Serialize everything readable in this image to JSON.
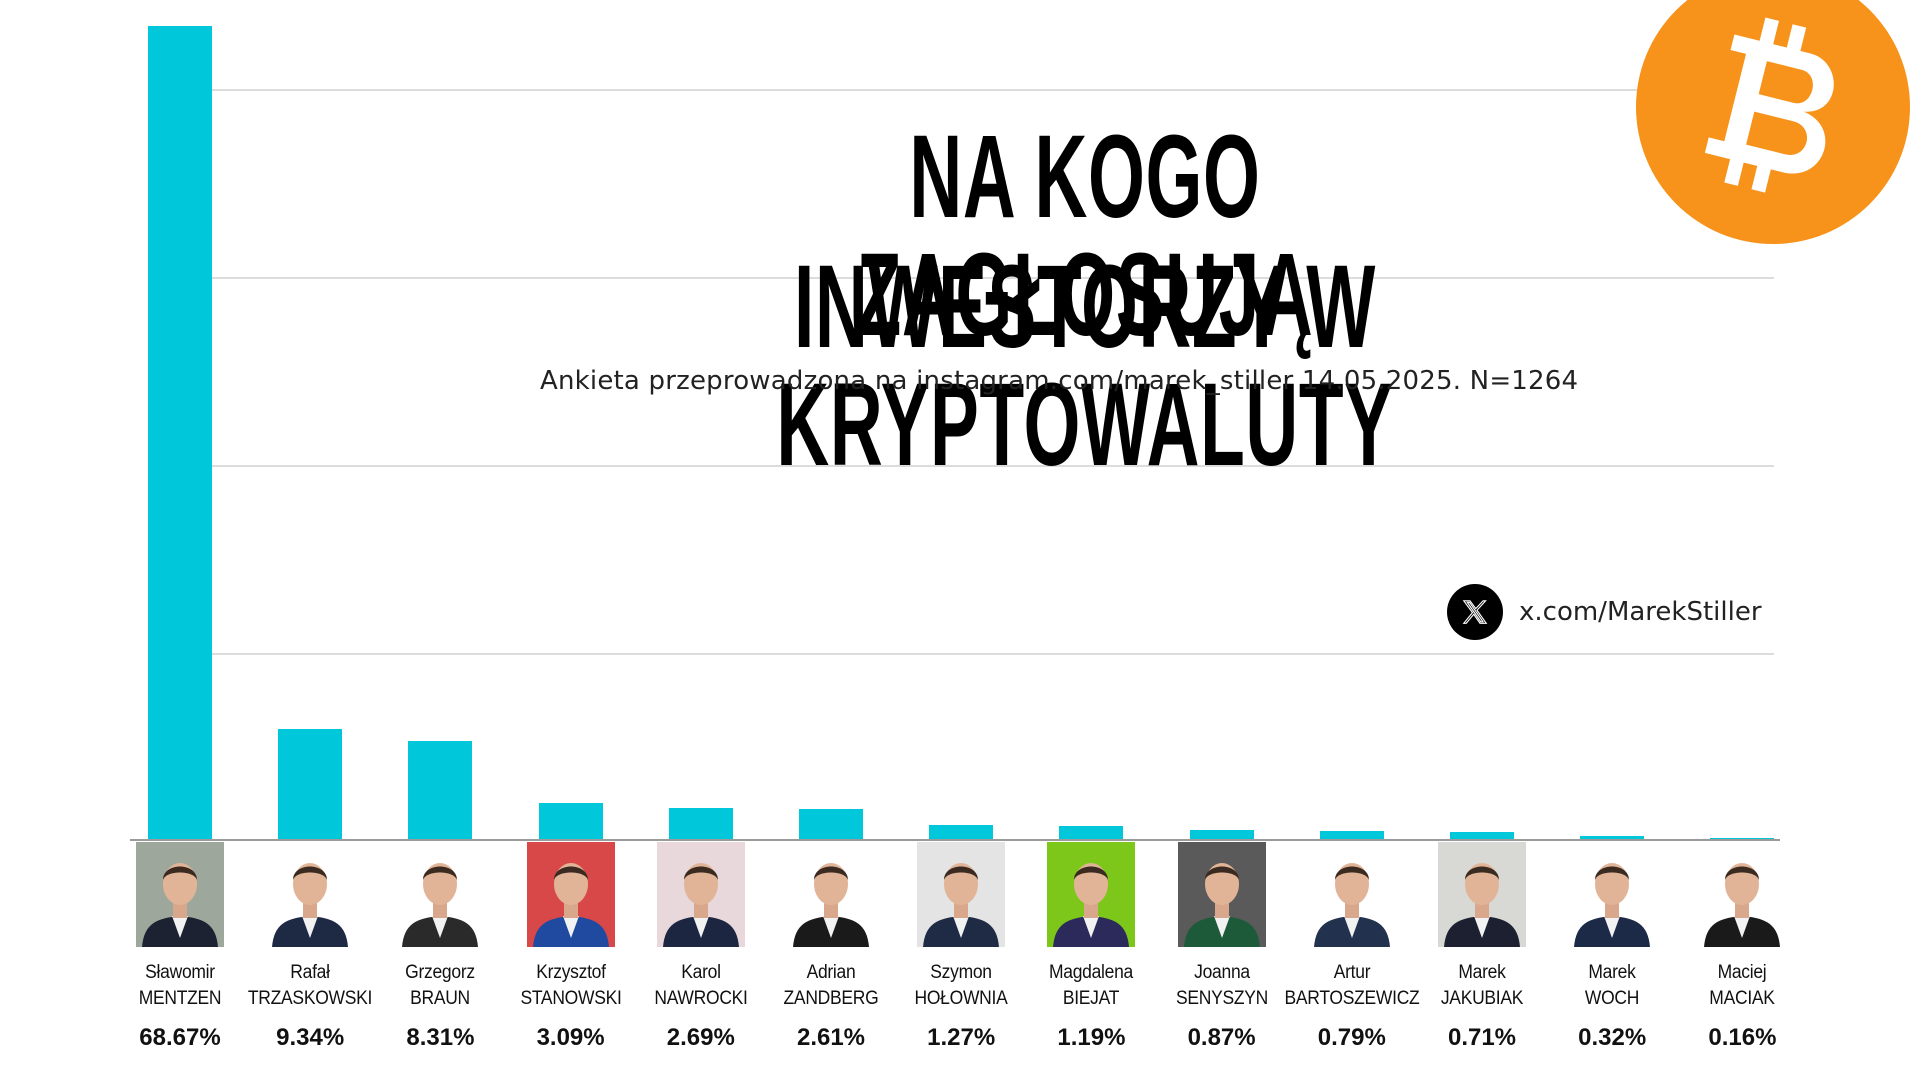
{
  "header": {
    "title_line1": "NA KOGO ZAGŁOSUJĄ",
    "title_line2": "INWESTORZY W KRYPTOWALUTY",
    "subtitle": "Ankieta przeprowadzona na instagram.com/marek_stiller 14.05.2025. N=1264"
  },
  "social": {
    "icon": "x-logo-icon",
    "handle": "x.com/MarekStiller"
  },
  "logo": {
    "icon": "bitcoin-icon",
    "color": "#f7931a"
  },
  "colors": {
    "bar": "#00c8da",
    "gridline": "#dcdcdc",
    "baseline": "#9a9a9a"
  },
  "chart_data": {
    "type": "bar",
    "title": "NA KOGO ZAGŁOSUJĄ INWESTORZY W KRYPTOWALUTY",
    "subtitle": "Ankieta przeprowadzona na instagram.com/marek_stiller 14.05.2025. N=1264",
    "categories": [
      "Sławomir MENTZEN",
      "Rafał TRZASKOWSKI",
      "Grzegorz BRAUN",
      "Krzysztof STANOWSKI",
      "Karol NAWROCKI",
      "Adrian ZANDBERG",
      "Szymon HOŁOWNIA",
      "Magdalena BIEJAT",
      "Joanna SENYSZYN",
      "Artur BARTOSZEWICZ",
      "Marek JAKUBIAK",
      "Marek WOCH",
      "Maciej MACIAK"
    ],
    "values": [
      68.67,
      9.34,
      8.31,
      3.09,
      2.69,
      2.61,
      1.27,
      1.19,
      0.87,
      0.79,
      0.71,
      0.32,
      0.16
    ],
    "unit": "%",
    "xlabel": "",
    "ylabel": "",
    "ylim": [
      0,
      70
    ],
    "grid": true,
    "legend": null,
    "annotations": [
      "x.com/MarekStiller"
    ]
  },
  "candidates": [
    {
      "first": "Sławomir",
      "last": "MENTZEN",
      "pct": "68.67%"
    },
    {
      "first": "Rafał",
      "last": "TRZASKOWSKI",
      "pct": "9.34%"
    },
    {
      "first": "Grzegorz",
      "last": "BRAUN",
      "pct": "8.31%"
    },
    {
      "first": "Krzysztof",
      "last": "STANOWSKI",
      "pct": "3.09%"
    },
    {
      "first": "Karol",
      "last": "NAWROCKI",
      "pct": "2.69%"
    },
    {
      "first": "Adrian",
      "last": "ZANDBERG",
      "pct": "2.61%"
    },
    {
      "first": "Szymon",
      "last": "HOŁOWNIA",
      "pct": "1.27%"
    },
    {
      "first": "Magdalena",
      "last": "BIEJAT",
      "pct": "1.19%"
    },
    {
      "first": "Joanna",
      "last": "SENYSZYN",
      "pct": "0.87%"
    },
    {
      "first": "Artur",
      "last": "BARTOSZEWICZ",
      "pct": "0.79%"
    },
    {
      "first": "Marek",
      "last": "JAKUBIAK",
      "pct": "0.71%"
    },
    {
      "first": "Marek",
      "last": "WOCH",
      "pct": "0.32%"
    },
    {
      "first": "Maciej",
      "last": "MACIAK",
      "pct": "0.16%"
    }
  ],
  "photo_backgrounds": [
    "#9ea79c",
    "#ffffff",
    "#ffffff",
    "#d94848",
    "#e8d8dc",
    "#ffffff",
    "#e4e4e4",
    "#7dc71a",
    "#5a5a5a",
    "#ffffff",
    "#d8d8d4",
    "#ffffff",
    "#ffffff"
  ],
  "photo_suits": [
    "#1d2233",
    "#1e2a44",
    "#2a2a2a",
    "#1f4aa0",
    "#1c2640",
    "#1a1a1a",
    "#1f2a44",
    "#2c2a5a",
    "#1d5a3a",
    "#22324e",
    "#1c2030",
    "#1c2a48",
    "#1a1a1a"
  ]
}
